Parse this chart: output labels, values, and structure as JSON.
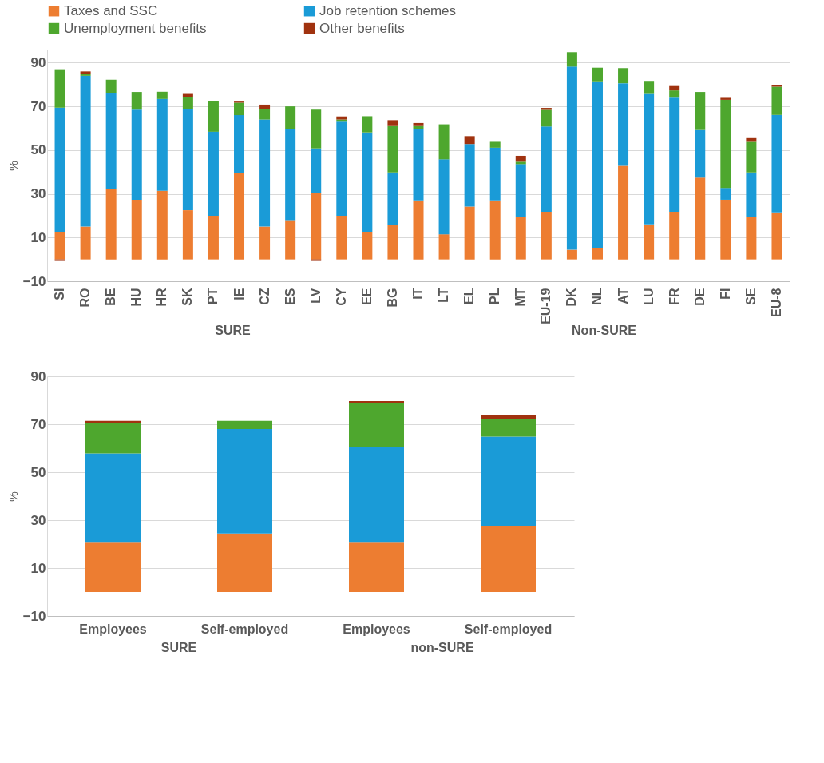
{
  "chart_data": [
    {
      "type": "bar",
      "stacked": true,
      "ylabel": "%",
      "ylim": [
        -10,
        96
      ],
      "yticks": [
        -10,
        10,
        30,
        50,
        70,
        90
      ],
      "grid": "y",
      "legend": "top",
      "categories": [
        "SI",
        "RO",
        "BE",
        "HU",
        "HR",
        "SK",
        "PT",
        "IE",
        "CZ",
        "ES",
        "LV",
        "CY",
        "EE",
        "BG",
        "IT",
        "LT",
        "EL",
        "PL",
        "MT",
        "EU-19",
        "DK",
        "NL",
        "AT",
        "LU",
        "FR",
        "DE",
        "FI",
        "SE",
        "EU-8"
      ],
      "series": [
        {
          "name": "Taxes and SSC",
          "color": "#ed7d31",
          "values": [
            12.4,
            15,
            32,
            27.3,
            31.4,
            22.5,
            20,
            39.6,
            15,
            18,
            30.5,
            20,
            12.4,
            15.8,
            27,
            11.5,
            24.2,
            27,
            19.6,
            21.8,
            4.4,
            5,
            42.8,
            16,
            21.8,
            37.4,
            27.3,
            19.6,
            21.5
          ]
        },
        {
          "name": "Job retention schemes",
          "color": "#1a9bd7",
          "values": [
            57,
            69,
            44.2,
            41.2,
            42,
            46.2,
            38.4,
            26.4,
            49,
            41.5,
            20.3,
            43,
            45.7,
            24,
            32.6,
            34.3,
            28.6,
            24.1,
            24,
            39,
            83.8,
            76.1,
            37.8,
            59.7,
            52.2,
            21.8,
            5.4,
            20.2,
            44.6
          ]
        },
        {
          "name": "Unemployment benefits",
          "color": "#4ea72e",
          "values": [
            17.6,
            1,
            6,
            8.1,
            3.3,
            5.7,
            13.9,
            5.7,
            4.7,
            10.5,
            17.7,
            1,
            7.4,
            21.2,
            1.4,
            16,
            0,
            2.7,
            1.1,
            7.6,
            6.6,
            6.6,
            6.9,
            5.6,
            3.3,
            17.4,
            40.3,
            14,
            12.9
          ]
        },
        {
          "name": "Other benefits",
          "color": "#a0320f",
          "values": [
            -0.7,
            1,
            0,
            0,
            0,
            1.3,
            0,
            0.5,
            2.1,
            0,
            -0.7,
            1.4,
            0,
            2.7,
            1.4,
            0,
            3.6,
            0,
            2.7,
            0.9,
            0,
            0,
            0,
            0,
            2,
            0,
            0.9,
            1.7,
            0.8
          ]
        }
      ],
      "annotations": [
        "SURE",
        "Non-SURE"
      ]
    },
    {
      "type": "bar",
      "stacked": true,
      "ylabel": "%",
      "ylim": [
        -10,
        90
      ],
      "yticks": [
        -10,
        10,
        30,
        50,
        70,
        90
      ],
      "grid": "y",
      "categories": [
        "Employees",
        "Self-employed",
        "Employees",
        "Self-employed"
      ],
      "series": [
        {
          "name": "Taxes and SSC",
          "color": "#ed7d31",
          "values": [
            20.6,
            24.4,
            20.6,
            27.7
          ]
        },
        {
          "name": "Job retention schemes",
          "color": "#1a9bd7",
          "values": [
            37.2,
            43.6,
            40.1,
            37.1
          ]
        },
        {
          "name": "Unemployment benefits",
          "color": "#4ea72e",
          "values": [
            12.8,
            3.4,
            18.2,
            7.2
          ]
        },
        {
          "name": "Other benefits",
          "color": "#a0320f",
          "values": [
            0.8,
            0,
            0.8,
            1.7
          ]
        }
      ],
      "annotations": [
        "SURE",
        "non-SURE"
      ]
    }
  ]
}
